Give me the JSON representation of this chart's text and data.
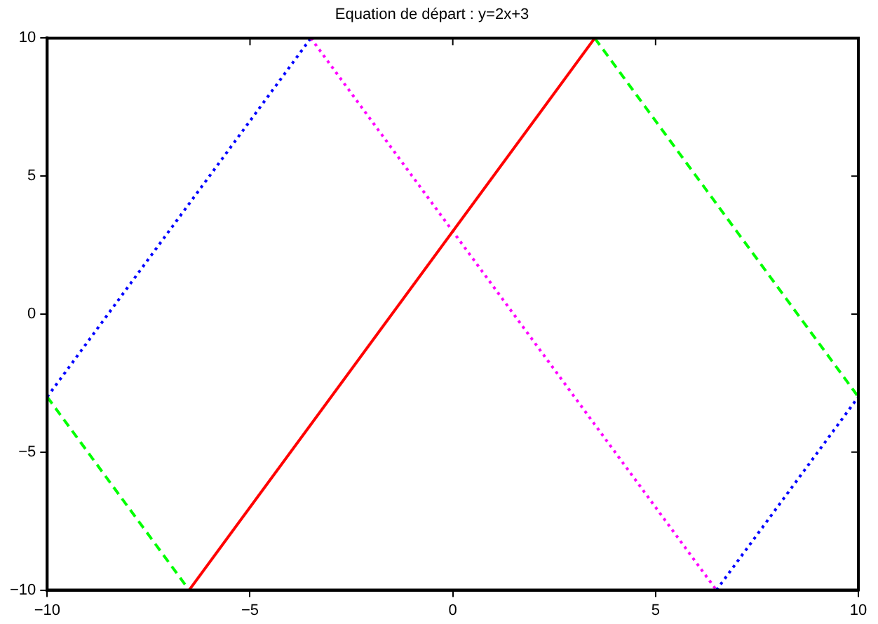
{
  "chart_data": {
    "type": "line",
    "title": "Equation de départ : y=2x+3",
    "xlim": [
      -10,
      10
    ],
    "ylim": [
      -10,
      10
    ],
    "xticks": [
      -10,
      -5,
      0,
      5,
      10
    ],
    "yticks": [
      -10,
      -5,
      0,
      5,
      10
    ],
    "grid": false,
    "legend": false,
    "marker": "none",
    "series": [
      {
        "color": "#ff0000",
        "line_style": "solid",
        "x": [
          -6.5,
          3.5
        ],
        "values": [
          -10,
          10
        ]
      },
      {
        "color": "#ff00ff",
        "line_style": "dotted",
        "x": [
          -3.5,
          6.5
        ],
        "values": [
          10,
          -10
        ]
      },
      {
        "color": "#0000ff",
        "line_style": "dotted",
        "x": [
          -10,
          -3.5
        ],
        "values": [
          -3,
          10
        ]
      },
      {
        "color": "#0000ff",
        "line_style": "dotted",
        "x": [
          6.5,
          10
        ],
        "values": [
          -10,
          -3
        ]
      },
      {
        "color": "#00ff00",
        "line_style": "dashed",
        "x": [
          -10,
          -6.5
        ],
        "values": [
          -3,
          -10
        ]
      },
      {
        "color": "#00ff00",
        "line_style": "dashed",
        "x": [
          3.5,
          10
        ],
        "values": [
          10,
          -3
        ]
      }
    ]
  }
}
